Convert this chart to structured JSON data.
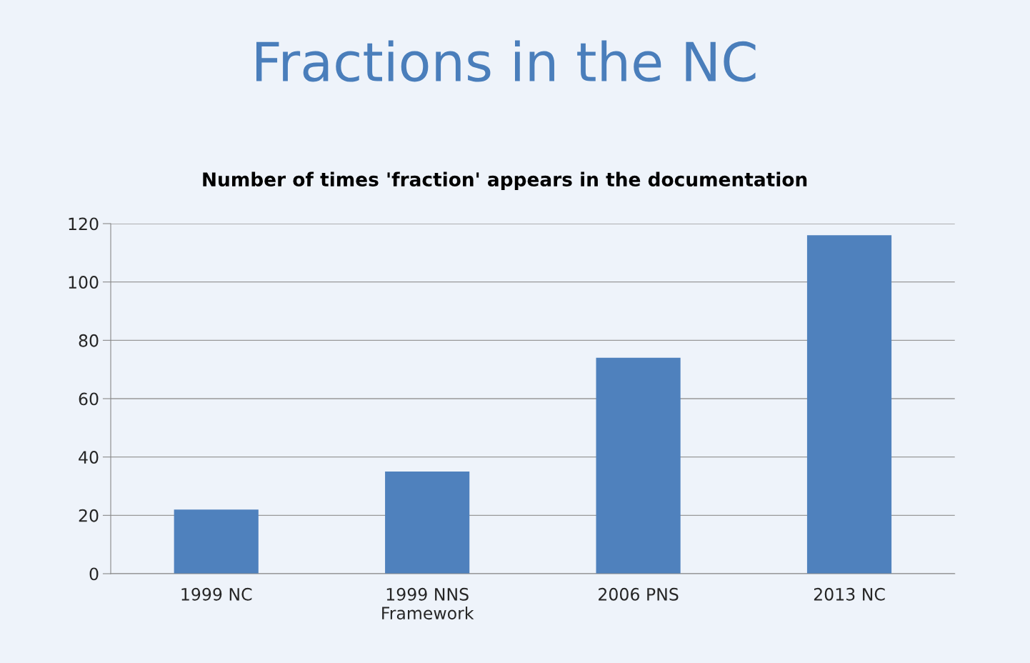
{
  "chart_data": {
    "type": "bar",
    "title": "Fractions in the NC",
    "subtitle": "Number of times 'fraction' appears in the documentation",
    "categories": [
      "1999 NC",
      "1999 NNS\nFramework",
      "2006 PNS",
      "2013 NC"
    ],
    "values": [
      22,
      35,
      74,
      116
    ],
    "color": "#4f81bd",
    "ylim": [
      0,
      120
    ],
    "yticks": [
      0,
      20,
      40,
      60,
      80,
      100,
      120
    ],
    "grid": "y"
  }
}
